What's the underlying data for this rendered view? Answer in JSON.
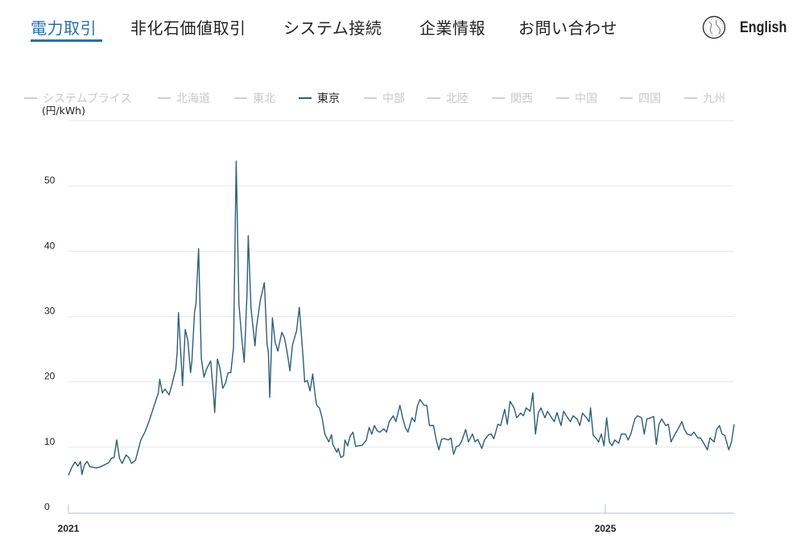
{
  "nav": {
    "items": [
      "電力取引",
      "非化石価値取引",
      "システム接続",
      "企業情報",
      "お問い合わせ"
    ],
    "active_index": 0,
    "language_label": "English",
    "language_icon": "globe-icon",
    "accent_color": "#2a6fa8"
  },
  "legend": {
    "items": [
      "システムプライス",
      "北海道",
      "東北",
      "東京",
      "中部",
      "北陸",
      "関西",
      "中国",
      "四国",
      "九州"
    ],
    "active": "東京"
  },
  "chart_data": {
    "type": "line",
    "ylabel": "(円/kWh)",
    "ylim": [
      0,
      60
    ],
    "yticks": [
      0,
      10,
      20,
      30,
      40,
      50
    ],
    "xlim": [
      2021,
      2025.96
    ],
    "xticks": [
      2021,
      2025
    ],
    "xtick_labels": [
      "2021",
      "2025"
    ],
    "grid": true,
    "legend_position": "top",
    "series": [
      {
        "name": "東京",
        "color": "#2d5d78",
        "x": [
          2021.0,
          2021.03,
          2021.05,
          2021.07,
          2021.09,
          2021.1,
          2021.12,
          2021.14,
          2021.16,
          2021.21,
          2021.24,
          2021.27,
          2021.3,
          2021.32,
          2021.34,
          2021.36,
          2021.38,
          2021.4,
          2021.43,
          2021.45,
          2021.47,
          2021.5,
          2021.52,
          2021.54,
          2021.57,
          2021.6,
          2021.63,
          2021.67,
          2021.68,
          2021.7,
          2021.72,
          2021.75,
          2021.77,
          2021.8,
          2021.81,
          2021.82,
          2021.84,
          2021.85,
          2021.87,
          2021.89,
          2021.91,
          2021.92,
          2021.94,
          2021.95,
          2021.97,
          2021.99,
          2022.01,
          2022.03,
          2022.06,
          2022.08,
          2022.09,
          2022.11,
          2022.13,
          2022.15,
          2022.17,
          2022.19,
          2022.21,
          2022.23,
          2022.25,
          2022.27,
          2022.29,
          2022.31,
          2022.33,
          2022.34,
          2022.36,
          2022.39,
          2022.4,
          2022.43,
          2022.46,
          2022.48,
          2022.49,
          2022.5,
          2022.52,
          2022.54,
          2022.56,
          2022.59,
          2022.61,
          2022.63,
          2022.65,
          2022.67,
          2022.7,
          2022.72,
          2022.75,
          2022.76,
          2022.78,
          2022.8,
          2022.82,
          2022.84,
          2022.85,
          2022.87,
          2022.89,
          2022.91,
          2022.94,
          2022.96,
          2022.97,
          2023.0,
          2023.01,
          2023.03,
          2023.05,
          2023.06,
          2023.08,
          2023.1,
          2023.12,
          2023.14,
          2023.16,
          2023.19,
          2023.22,
          2023.24,
          2023.26,
          2023.28,
          2023.3,
          2023.32,
          2023.35,
          2023.37,
          2023.39,
          2023.42,
          2023.44,
          2023.47,
          2023.49,
          2023.51,
          2023.53,
          2023.56,
          2023.58,
          2023.6,
          2023.62,
          2023.65,
          2023.67,
          2023.69,
          2023.72,
          2023.74,
          2023.76,
          2023.78,
          2023.8,
          2023.83,
          2023.85,
          2023.87,
          2023.89,
          2023.91,
          2023.93,
          2023.96,
          2023.98,
          2024.01,
          2024.03,
          2024.05,
          2024.08,
          2024.1,
          2024.13,
          2024.15,
          2024.17,
          2024.2,
          2024.22,
          2024.25,
          2024.27,
          2024.29,
          2024.32,
          2024.34,
          2024.37,
          2024.39,
          2024.41,
          2024.44,
          2024.46,
          2024.48,
          2024.5,
          2024.52,
          2024.55,
          2024.57,
          2024.59,
          2024.62,
          2024.64,
          2024.67,
          2024.69,
          2024.71,
          2024.74,
          2024.76,
          2024.79,
          2024.81,
          2024.83,
          2024.86,
          2024.88,
          2024.89,
          2024.91,
          2024.93,
          2024.95,
          2024.97,
          2024.99,
          2025.01,
          2025.03,
          2025.05,
          2025.07,
          2025.1,
          2025.12,
          2025.15,
          2025.17,
          2025.19,
          2025.22,
          2025.24,
          2025.27,
          2025.29,
          2025.31,
          2025.34,
          2025.36,
          2025.38,
          2025.4,
          2025.42,
          2025.45,
          2025.47,
          2025.49,
          2025.52,
          2025.54,
          2025.57,
          2025.59,
          2025.61,
          2025.64,
          2025.66,
          2025.69,
          2025.71,
          2025.73,
          2025.76,
          2025.78,
          2025.81,
          2025.83,
          2025.85,
          2025.87,
          2025.89,
          2025.92,
          2025.94,
          2025.96
        ],
        "y": [
          5.7,
          7.1,
          7.7,
          7.1,
          7.8,
          5.8,
          7.3,
          7.8,
          7.0,
          6.8,
          7.0,
          7.3,
          7.6,
          8.3,
          8.4,
          11.1,
          8.3,
          7.5,
          8.8,
          8.4,
          7.5,
          8.0,
          9.6,
          11.1,
          12.3,
          13.9,
          15.8,
          18.3,
          20.4,
          18.3,
          18.9,
          18.0,
          19.5,
          22.0,
          24.5,
          30.6,
          23.2,
          19.4,
          28.0,
          26.3,
          21.4,
          23.2,
          30.7,
          31.9,
          40.4,
          23.6,
          20.7,
          22.0,
          23.2,
          18.3,
          15.3,
          23.5,
          22.0,
          19.0,
          19.8,
          21.4,
          21.4,
          25.3,
          53.8,
          31.9,
          27.0,
          23.0,
          33.4,
          42.4,
          31.3,
          25.5,
          28.2,
          32.5,
          35.2,
          25.7,
          24.5,
          17.6,
          29.8,
          26.1,
          24.7,
          27.6,
          26.7,
          24.5,
          21.7,
          25.7,
          27.8,
          31.4,
          23.2,
          20.0,
          20.2,
          18.6,
          21.2,
          17.6,
          16.4,
          16.0,
          14.5,
          12.0,
          10.8,
          11.9,
          10.4,
          9.2,
          9.8,
          8.4,
          8.7,
          11.1,
          10.2,
          11.7,
          12.3,
          10.1,
          10.2,
          10.3,
          11.1,
          13.0,
          12.0,
          13.3,
          12.5,
          12.3,
          12.8,
          12.3,
          13.9,
          14.8,
          13.9,
          16.4,
          14.5,
          13.0,
          12.3,
          14.5,
          13.9,
          16.3,
          17.3,
          16.4,
          16.4,
          13.3,
          13.3,
          11.1,
          9.6,
          11.2,
          11.3,
          11.1,
          11.4,
          8.9,
          10.1,
          10.2,
          10.9,
          12.7,
          10.8,
          12.0,
          10.8,
          11.2,
          9.8,
          11.1,
          11.9,
          12.0,
          11.3,
          13.5,
          13.3,
          15.8,
          13.5,
          17.0,
          16.0,
          14.5,
          15.2,
          14.8,
          16.0,
          15.5,
          18.3,
          12.0,
          15.2,
          16.0,
          14.5,
          15.5,
          14.8,
          13.9,
          15.3,
          13.3,
          15.5,
          14.8,
          13.9,
          14.8,
          14.3,
          13.3,
          15.2,
          14.5,
          13.9,
          16.0,
          11.8,
          11.4,
          10.8,
          12.0,
          10.2,
          14.5,
          10.8,
          10.2,
          11.1,
          10.6,
          12.0,
          12.0,
          11.1,
          12.0,
          14.3,
          14.8,
          14.5,
          12.0,
          14.3,
          14.5,
          14.7,
          10.4,
          13.5,
          14.3,
          13.3,
          13.5,
          10.8,
          12.0,
          12.7,
          13.9,
          12.7,
          12.0,
          11.8,
          12.3,
          11.4,
          11.4,
          10.7,
          9.6,
          11.4,
          10.8,
          12.7,
          13.3,
          12.0,
          11.8,
          9.6,
          10.8,
          13.5
        ]
      }
    ]
  }
}
